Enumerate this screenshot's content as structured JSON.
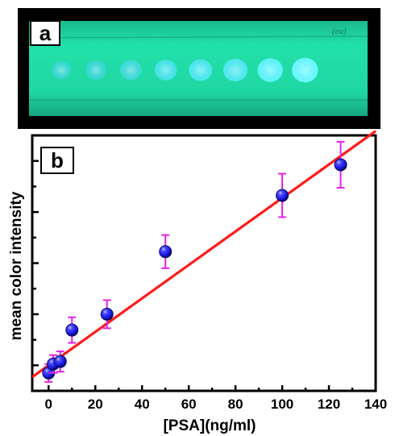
{
  "panel_a": {
    "label": "a",
    "background_color": "#000000",
    "strip_color": "#1fe0a6",
    "spot_colors": [
      "#3ad8d0",
      "#3ad6d2",
      "#40dad8",
      "#48e2e6",
      "#4ee6ee",
      "#52e8f0",
      "#62f2fa",
      "#6cf6ff"
    ]
  },
  "panel_b": {
    "label": "b"
  },
  "chart_data": {
    "type": "scatter",
    "title": "",
    "xlabel": "[PSA](ng/ml)",
    "ylabel": "mean color intensity",
    "xlim": [
      -7,
      140
    ],
    "ylim": [
      0,
      1
    ],
    "x_ticks": [
      0,
      20,
      40,
      60,
      80,
      100,
      120,
      140
    ],
    "y_ticks_labeled": false,
    "grid": false,
    "legend": "none",
    "series": [
      {
        "x": [
          0,
          2,
          5,
          10,
          25,
          50,
          100,
          125
        ],
        "y": [
          0.07,
          0.105,
          0.115,
          0.238,
          0.3,
          0.545,
          0.765,
          0.885
        ],
        "error": [
          0.035,
          0.035,
          0.04,
          0.05,
          0.055,
          0.065,
          0.085,
          0.09
        ],
        "marker_color": "#1515dd",
        "error_bar_color": "#e620e6"
      }
    ],
    "fit_line": {
      "type": "linear",
      "x_range": [
        -7,
        140
      ],
      "intercept": 0.1,
      "slope": 0.00655,
      "color": "#ff1a1a"
    }
  }
}
